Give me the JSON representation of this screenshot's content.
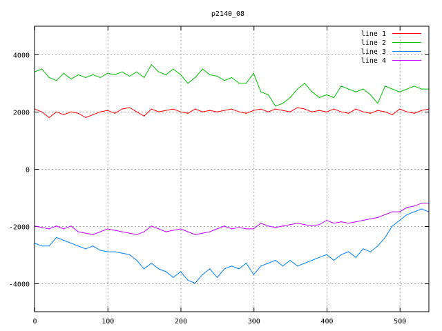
{
  "chart_data": {
    "type": "line",
    "title": "p2140_08",
    "xlabel": "",
    "ylabel": "",
    "xlim": [
      0,
      540
    ],
    "ylim": [
      -5000,
      5000
    ],
    "xticks": [
      0,
      100,
      200,
      300,
      400,
      500
    ],
    "yticks": [
      -4000,
      -2000,
      0,
      2000,
      4000
    ],
    "grid": true,
    "legend_position": "top-right",
    "x": [
      0,
      10,
      20,
      30,
      40,
      50,
      60,
      70,
      80,
      90,
      100,
      110,
      120,
      130,
      140,
      150,
      160,
      170,
      180,
      190,
      200,
      210,
      220,
      230,
      240,
      250,
      260,
      270,
      280,
      290,
      300,
      310,
      320,
      330,
      340,
      350,
      360,
      370,
      380,
      390,
      400,
      410,
      420,
      430,
      440,
      450,
      460,
      470,
      480,
      490,
      500,
      510,
      520,
      530,
      540
    ],
    "series": [
      {
        "name": "line 1",
        "color": "#ff0000",
        "values": [
          2100,
          2000,
          1800,
          2000,
          1900,
          2000,
          1950,
          1800,
          1900,
          2000,
          2050,
          1950,
          2100,
          2150,
          2000,
          1850,
          2100,
          2000,
          2050,
          2100,
          2000,
          1950,
          2100,
          2000,
          2050,
          2000,
          2050,
          2100,
          2000,
          1950,
          2050,
          2100,
          2000,
          2100,
          2050,
          2000,
          2150,
          2100,
          2000,
          2050,
          2000,
          2100,
          2000,
          1950,
          2100,
          2000,
          1950,
          2050,
          2000,
          1900,
          2100,
          2000,
          1950,
          2050,
          2100
        ]
      },
      {
        "name": "line 2",
        "color": "#00c000",
        "values": [
          3400,
          3500,
          3200,
          3100,
          3350,
          3150,
          3300,
          3200,
          3300,
          3200,
          3350,
          3300,
          3400,
          3250,
          3400,
          3200,
          3650,
          3400,
          3300,
          3500,
          3300,
          3000,
          3200,
          3500,
          3300,
          3250,
          3100,
          3200,
          3000,
          3000,
          3350,
          2700,
          2600,
          2200,
          2300,
          2500,
          2800,
          3000,
          2700,
          2500,
          2600,
          2500,
          2900,
          2800,
          2700,
          2800,
          2600,
          2300,
          2900,
          2800,
          2700,
          2800,
          2900,
          2800,
          2800
        ]
      },
      {
        "name": "line 3",
        "color": "#0080ff",
        "values": [
          -2600,
          -2700,
          -2700,
          -2400,
          -2500,
          -2600,
          -2700,
          -2800,
          -2700,
          -2850,
          -2900,
          -2900,
          -2950,
          -3000,
          -3200,
          -3500,
          -3300,
          -3500,
          -3600,
          -3800,
          -3600,
          -3900,
          -4000,
          -3700,
          -3500,
          -3800,
          -3500,
          -3400,
          -3500,
          -3300,
          -3700,
          -3400,
          -3300,
          -3200,
          -3400,
          -3200,
          -3400,
          -3300,
          -3200,
          -3100,
          -3000,
          -3200,
          -3000,
          -2900,
          -3100,
          -2800,
          -2900,
          -2700,
          -2400,
          -2000,
          -1800,
          -1600,
          -1500,
          -1400,
          -1500
        ]
      },
      {
        "name": "line 4",
        "color": "#c000ff",
        "values": [
          -2000,
          -2050,
          -2100,
          -2000,
          -2100,
          -2000,
          -2200,
          -2250,
          -2300,
          -2200,
          -2100,
          -2150,
          -2200,
          -2250,
          -2300,
          -2200,
          -2000,
          -2100,
          -2200,
          -2150,
          -2100,
          -2200,
          -2300,
          -2250,
          -2200,
          -2100,
          -2000,
          -2100,
          -2050,
          -2100,
          -2100,
          -1900,
          -2000,
          -2050,
          -2000,
          -1950,
          -1900,
          -1950,
          -2000,
          -1950,
          -1800,
          -1900,
          -1850,
          -1900,
          -1850,
          -1800,
          -1750,
          -1700,
          -1600,
          -1500,
          -1500,
          -1350,
          -1300,
          -1200,
          -1200
        ]
      }
    ]
  }
}
